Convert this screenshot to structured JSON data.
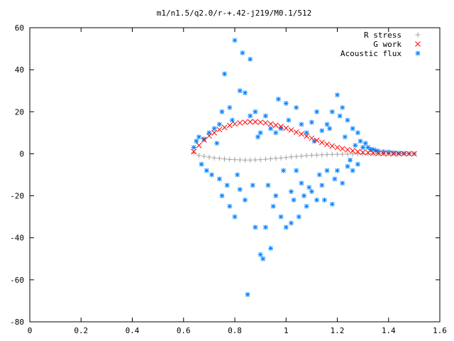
{
  "chart_data": {
    "type": "scatter",
    "title": "m1/n1.5/q2.0/r-+.42-j219/M0.1/512",
    "xlabel": "",
    "ylabel": "",
    "xlim": [
      0,
      1.6
    ],
    "ylim": [
      -80,
      60
    ],
    "xticks": [
      "0",
      "0.2",
      "0.4",
      "0.6",
      "0.8",
      "1",
      "1.2",
      "1.4",
      "1.6"
    ],
    "yticks": [
      "60",
      "40",
      "20",
      "0",
      "-20",
      "-40",
      "-60",
      "-80"
    ],
    "grid": false,
    "legend_position": "top-right",
    "series": [
      {
        "name": "R stress",
        "marker": "+",
        "color": "#a0a0a0",
        "x": [
          0.64,
          0.66,
          0.68,
          0.7,
          0.72,
          0.74,
          0.76,
          0.78,
          0.8,
          0.82,
          0.84,
          0.86,
          0.88,
          0.9,
          0.92,
          0.94,
          0.96,
          0.98,
          1.0,
          1.02,
          1.04,
          1.06,
          1.08,
          1.1,
          1.12,
          1.14,
          1.16,
          1.18,
          1.2,
          1.22,
          1.24,
          1.26,
          1.28,
          1.3,
          1.32,
          1.34,
          1.36,
          1.38,
          1.4,
          1.42,
          1.44,
          1.46,
          1.48,
          1.5
        ],
        "y": [
          0.5,
          -0.8,
          -1.2,
          -1.6,
          -2.0,
          -2.2,
          -2.5,
          -2.7,
          -2.8,
          -2.9,
          -3.0,
          -3.0,
          -2.9,
          -2.8,
          -2.6,
          -2.4,
          -2.2,
          -2.0,
          -1.8,
          -1.5,
          -1.3,
          -1.1,
          -0.9,
          -0.7,
          -0.6,
          -0.5,
          -0.4,
          -0.3,
          -0.25,
          -0.2,
          -0.15,
          -0.1,
          -0.08,
          -0.05,
          -0.03,
          -0.02,
          0,
          0,
          0,
          0,
          0,
          0,
          0,
          0
        ]
      },
      {
        "name": "G work",
        "marker": "x",
        "color": "#ff0000",
        "x": [
          0.64,
          0.66,
          0.68,
          0.7,
          0.72,
          0.74,
          0.76,
          0.78,
          0.8,
          0.82,
          0.84,
          0.86,
          0.88,
          0.9,
          0.92,
          0.94,
          0.96,
          0.98,
          1.0,
          1.02,
          1.04,
          1.06,
          1.08,
          1.1,
          1.12,
          1.14,
          1.16,
          1.18,
          1.2,
          1.22,
          1.24,
          1.26,
          1.28,
          1.3,
          1.32,
          1.34,
          1.36,
          1.38,
          1.4,
          1.42,
          1.44,
          1.46,
          1.48,
          1.5
        ],
        "y": [
          1.0,
          4.0,
          6.5,
          8.5,
          10.0,
          11.5,
          12.5,
          13.5,
          14.2,
          14.7,
          15.0,
          15.2,
          15.2,
          15.0,
          14.7,
          14.2,
          13.6,
          13.0,
          12.2,
          11.3,
          10.3,
          9.4,
          8.4,
          7.4,
          6.4,
          5.4,
          4.5,
          3.7,
          3.0,
          2.4,
          1.9,
          1.4,
          1.0,
          0.7,
          0.5,
          0.3,
          0.2,
          0.1,
          0.05,
          0.02,
          0,
          0,
          0,
          0
        ]
      },
      {
        "name": "Acoustic flux",
        "marker": "*",
        "color": "#0080ff",
        "x": [
          0.64,
          0.65,
          0.66,
          0.67,
          0.68,
          0.69,
          0.7,
          0.71,
          0.72,
          0.73,
          0.74,
          0.74,
          0.75,
          0.75,
          0.76,
          0.77,
          0.78,
          0.78,
          0.79,
          0.8,
          0.8,
          0.81,
          0.82,
          0.82,
          0.83,
          0.84,
          0.84,
          0.85,
          0.86,
          0.86,
          0.87,
          0.88,
          0.88,
          0.89,
          0.9,
          0.9,
          0.91,
          0.92,
          0.92,
          0.93,
          0.94,
          0.94,
          0.95,
          0.96,
          0.96,
          0.97,
          0.98,
          0.98,
          0.99,
          1.0,
          1.0,
          1.01,
          1.02,
          1.02,
          1.03,
          1.04,
          1.04,
          1.05,
          1.06,
          1.06,
          1.07,
          1.08,
          1.08,
          1.09,
          1.1,
          1.1,
          1.11,
          1.12,
          1.12,
          1.13,
          1.14,
          1.14,
          1.15,
          1.16,
          1.16,
          1.17,
          1.18,
          1.18,
          1.19,
          1.2,
          1.2,
          1.21,
          1.22,
          1.22,
          1.23,
          1.24,
          1.24,
          1.25,
          1.26,
          1.26,
          1.27,
          1.28,
          1.28,
          1.29,
          1.3,
          1.31,
          1.32,
          1.33,
          1.34,
          1.35,
          1.36,
          1.38,
          1.4,
          1.42,
          1.44,
          1.46,
          1.48,
          1.5
        ],
        "y": [
          3,
          6,
          8,
          -5,
          7,
          -8,
          10,
          -10,
          12,
          5,
          -12,
          14,
          20,
          -20,
          38,
          -15,
          22,
          -25,
          16,
          54,
          -30,
          -10,
          30,
          -17,
          48,
          29,
          -22,
          -67,
          45,
          18,
          -15,
          20,
          -35,
          8,
          -48,
          10,
          -50,
          18,
          -35,
          -15,
          12,
          -45,
          -25,
          10,
          -20,
          26,
          -30,
          12,
          -8,
          -35,
          24,
          16,
          -33,
          -18,
          -22,
          -8,
          22,
          -30,
          -14,
          14,
          -20,
          10,
          -25,
          -16,
          15,
          -18,
          6,
          -22,
          20,
          -10,
          11,
          -15,
          -22,
          14,
          -8,
          12,
          -24,
          20,
          -12,
          28,
          -8,
          18,
          -14,
          22,
          8,
          -6,
          16,
          -3,
          -8,
          12,
          4,
          -5,
          10,
          6,
          3,
          5,
          3,
          2,
          2,
          1.5,
          1.2,
          1.0,
          0.8,
          0.5,
          0.3,
          0.2,
          0.1,
          0
        ]
      }
    ]
  }
}
